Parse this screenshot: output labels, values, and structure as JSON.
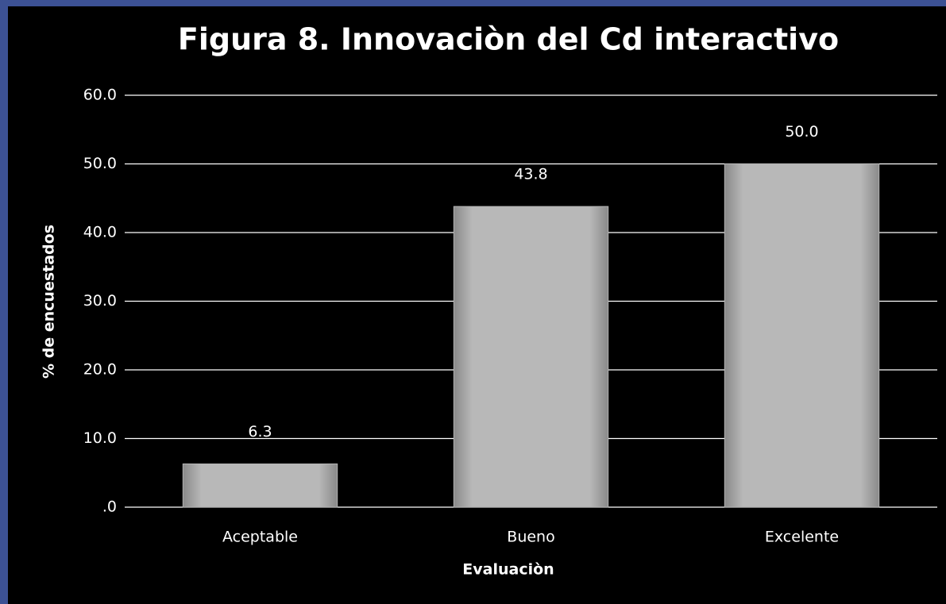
{
  "chart_data": {
    "type": "bar",
    "title": "Figura 8. Innovaciòn del Cd interactivo",
    "x_label": "Evaluaciòn",
    "y_label": "% de encuestados",
    "categories": [
      "Aceptable",
      "Bueno",
      "Excelente"
    ],
    "values": [
      6.3,
      43.8,
      50.0
    ],
    "value_labels": [
      "6.3",
      "43.8",
      "50.0"
    ],
    "color": "#b4b4b4",
    "ylim": [
      0,
      60
    ],
    "yticks": [
      {
        "value": 0,
        "label": ".0"
      },
      {
        "value": 10,
        "label": "10.0"
      },
      {
        "value": 20,
        "label": "20.0"
      },
      {
        "value": 30,
        "label": "30.0"
      },
      {
        "value": 40,
        "label": "40.0"
      },
      {
        "value": 50,
        "label": "50.0"
      },
      {
        "value": 60,
        "label": "60.0"
      }
    ],
    "grid": true
  }
}
